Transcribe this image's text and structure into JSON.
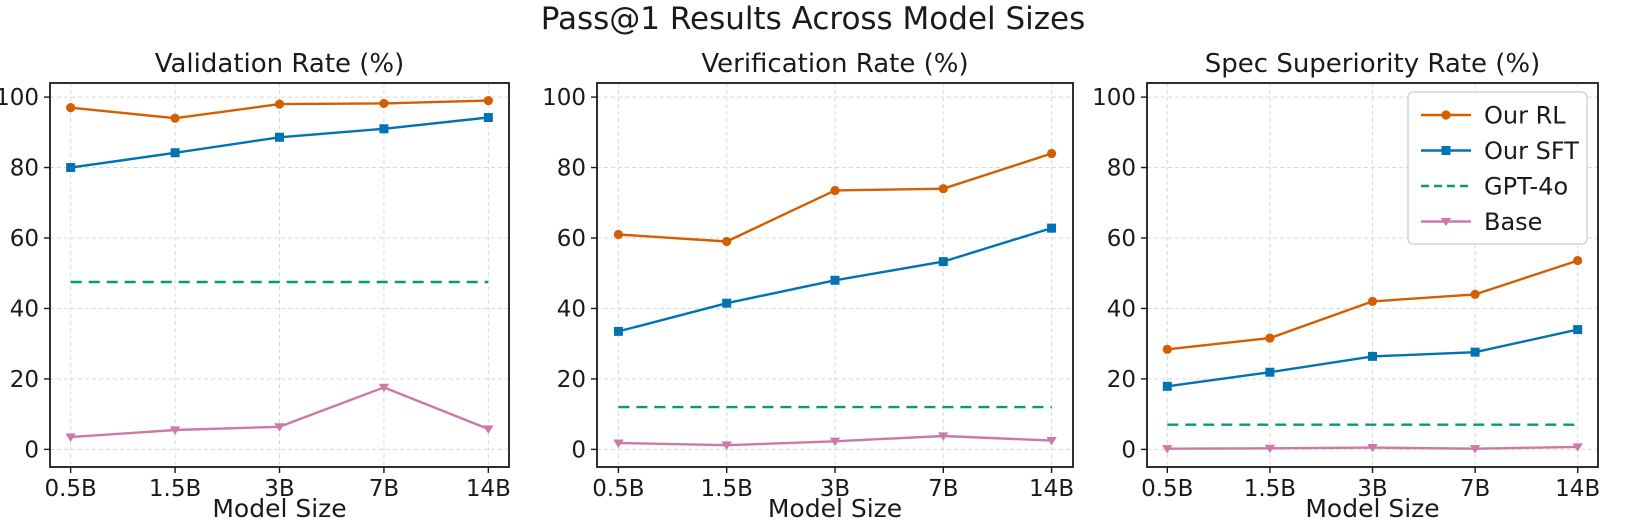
{
  "page": {
    "title": "Pass@1 Results Across Model Sizes",
    "xlabel": "Model Size"
  },
  "colors": {
    "our_rl": "#D55E00",
    "our_sft": "#0173B2",
    "gpt4o": "#029E73",
    "base": "#CC79A7",
    "grid": "#d9d9d9",
    "spine": "#1a1a1a",
    "text": "#1a1a1a",
    "legend_border": "#cccccc",
    "background": "#ffffff"
  },
  "legend": {
    "entries": [
      "Our RL",
      "Our SFT",
      "GPT-4o",
      "Base"
    ],
    "position": "upper right"
  },
  "chart_data": [
    {
      "type": "line",
      "title": "Validation Rate (%)",
      "xlabel": "Model Size",
      "ylabel": "",
      "categories": [
        "0.5B",
        "1.5B",
        "3B",
        "7B",
        "14B"
      ],
      "ylim": [
        -5,
        104
      ],
      "yticks": [
        0,
        20,
        40,
        60,
        80,
        100
      ],
      "grid": true,
      "show_legend": false,
      "series": [
        {
          "name": "Our RL",
          "color": "#D55E00",
          "marker": "circle",
          "style": "solid",
          "values": [
            97.0,
            94.0,
            98.0,
            98.2,
            99.0
          ]
        },
        {
          "name": "Our SFT",
          "color": "#0173B2",
          "marker": "square",
          "style": "solid",
          "values": [
            80.0,
            84.2,
            88.6,
            91.0,
            94.2
          ]
        },
        {
          "name": "GPT-4o",
          "color": "#029E73",
          "marker": "none",
          "style": "dashed",
          "values": [
            47.5,
            47.5,
            47.5,
            47.5,
            47.5
          ]
        },
        {
          "name": "Base",
          "color": "#CC79A7",
          "marker": "triangle-down",
          "style": "solid",
          "values": [
            3.5,
            5.5,
            6.4,
            17.6,
            5.8
          ]
        }
      ]
    },
    {
      "type": "line",
      "title": "Verification Rate (%)",
      "xlabel": "Model Size",
      "ylabel": "",
      "categories": [
        "0.5B",
        "1.5B",
        "3B",
        "7B",
        "14B"
      ],
      "ylim": [
        -5,
        104
      ],
      "yticks": [
        0,
        20,
        40,
        60,
        80,
        100
      ],
      "grid": true,
      "show_legend": false,
      "series": [
        {
          "name": "Our RL",
          "color": "#D55E00",
          "marker": "circle",
          "style": "solid",
          "values": [
            61.0,
            59.0,
            73.5,
            74.0,
            84.0
          ]
        },
        {
          "name": "Our SFT",
          "color": "#0173B2",
          "marker": "square",
          "style": "solid",
          "values": [
            33.5,
            41.5,
            48.0,
            53.3,
            62.8
          ]
        },
        {
          "name": "GPT-4o",
          "color": "#029E73",
          "marker": "none",
          "style": "dashed",
          "values": [
            12.0,
            12.0,
            12.0,
            12.0,
            12.0
          ]
        },
        {
          "name": "Base",
          "color": "#CC79A7",
          "marker": "triangle-down",
          "style": "solid",
          "values": [
            1.8,
            1.2,
            2.3,
            3.8,
            2.5
          ]
        }
      ]
    },
    {
      "type": "line",
      "title": "Spec Superiority Rate (%)",
      "xlabel": "Model Size",
      "ylabel": "",
      "categories": [
        "0.5B",
        "1.5B",
        "3B",
        "7B",
        "14B"
      ],
      "ylim": [
        -5,
        104
      ],
      "yticks": [
        0,
        20,
        40,
        60,
        80,
        100
      ],
      "grid": true,
      "show_legend": true,
      "series": [
        {
          "name": "Our RL",
          "color": "#D55E00",
          "marker": "circle",
          "style": "solid",
          "values": [
            28.4,
            31.6,
            42.0,
            44.0,
            53.6
          ]
        },
        {
          "name": "Our SFT",
          "color": "#0173B2",
          "marker": "square",
          "style": "solid",
          "values": [
            17.9,
            21.9,
            26.4,
            27.6,
            34.0
          ]
        },
        {
          "name": "GPT-4o",
          "color": "#029E73",
          "marker": "none",
          "style": "dashed",
          "values": [
            7.0,
            7.0,
            7.0,
            7.0,
            7.0
          ]
        },
        {
          "name": "Base",
          "color": "#CC79A7",
          "marker": "triangle-down",
          "style": "solid",
          "values": [
            0.2,
            0.3,
            0.5,
            0.2,
            0.7
          ]
        }
      ]
    }
  ]
}
